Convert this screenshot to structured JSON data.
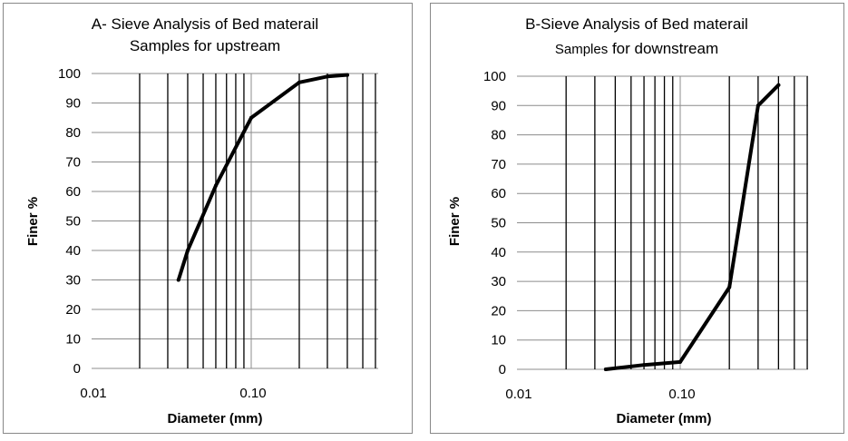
{
  "chart_data": [
    {
      "type": "line",
      "title": "A- Sieve Analysis of Bed materail",
      "subtitle": "Samples for upstream",
      "xlabel": "Diameter (mm)",
      "ylabel": "Finer %",
      "x_scale": "log",
      "xlim": [
        0.01,
        0.6
      ],
      "ylim": [
        0,
        100
      ],
      "x_tick_labels": [
        "0.01",
        "0.10"
      ],
      "y_ticks": [
        0,
        10,
        20,
        30,
        40,
        50,
        60,
        70,
        80,
        90,
        100
      ],
      "grid": true,
      "legend": "none",
      "line_color": "#000000",
      "series": [
        {
          "x": [
            0.035,
            0.04,
            0.06,
            0.1,
            0.2,
            0.3,
            0.4
          ],
          "y": [
            30,
            40,
            62,
            85,
            97,
            99,
            99.5
          ]
        }
      ]
    },
    {
      "type": "line",
      "title": "B-Sieve Analysis of Bed materail",
      "subtitle_prefix": "Samples",
      "subtitle_rest": " for downstream",
      "xlabel": "Diameter (mm)",
      "ylabel": "Finer %",
      "x_scale": "log",
      "xlim": [
        0.01,
        0.6
      ],
      "ylim": [
        0,
        100
      ],
      "x_tick_labels": [
        "0.01",
        "0.10"
      ],
      "y_ticks": [
        0,
        10,
        20,
        30,
        40,
        50,
        60,
        70,
        80,
        90,
        100
      ],
      "grid": true,
      "legend": "none",
      "line_color": "#000000",
      "series": [
        {
          "x": [
            0.035,
            0.06,
            0.1,
            0.2,
            0.3,
            0.4
          ],
          "y": [
            0,
            1.5,
            2.5,
            28,
            90,
            97
          ]
        }
      ]
    }
  ]
}
